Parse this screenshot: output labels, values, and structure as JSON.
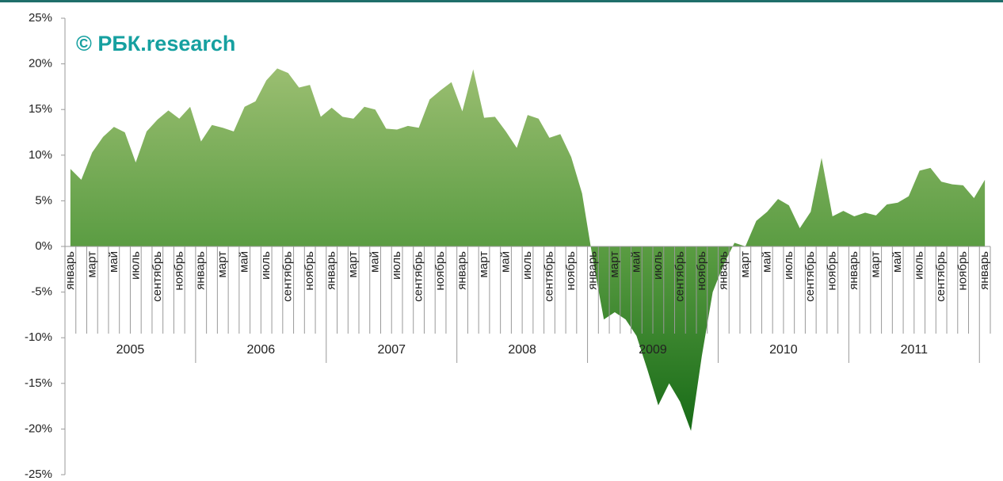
{
  "chart_data": {
    "type": "area",
    "annotation": "© РБК.research",
    "categories": [
      "январь",
      null,
      "март",
      null,
      "май",
      null,
      "июль",
      null,
      "сентябрь",
      null,
      "ноябрь",
      null,
      "январь",
      null,
      "март",
      null,
      "май",
      null,
      "июль",
      null,
      "сентябрь",
      null,
      "ноябрь",
      null,
      "январь",
      null,
      "март",
      null,
      "май",
      null,
      "июль",
      null,
      "сентябрь",
      null,
      "ноябрь",
      null,
      "январь",
      null,
      "март",
      null,
      "май",
      null,
      "июль",
      null,
      "сентябрь",
      null,
      "ноябрь",
      null,
      "январь",
      null,
      "март",
      null,
      "май",
      null,
      "июль",
      null,
      "сентябрь",
      null,
      "ноябрь",
      null,
      "январь",
      null,
      "март",
      null,
      "май",
      null,
      "июль",
      null,
      "сентябрь",
      null,
      "ноябрь",
      null,
      "январь",
      null,
      "март",
      null,
      "май",
      null,
      "июль",
      null,
      "сентябрь",
      null,
      "ноябрь",
      null,
      "январь"
    ],
    "years": [
      "2005",
      "2006",
      "2007",
      "2008",
      "2009",
      "2010",
      "2011"
    ],
    "values": [
      8.5,
      7.3,
      10.3,
      12.0,
      13.1,
      12.5,
      9.2,
      12.6,
      13.9,
      14.9,
      14.0,
      15.3,
      11.5,
      13.3,
      13.0,
      12.6,
      15.3,
      15.9,
      18.2,
      19.5,
      19.0,
      17.4,
      17.7,
      14.2,
      15.2,
      14.2,
      14.0,
      15.3,
      15.0,
      12.9,
      12.8,
      13.2,
      13.0,
      16.1,
      17.1,
      18.0,
      14.8,
      19.4,
      14.1,
      14.2,
      12.6,
      10.8,
      14.4,
      14.0,
      11.9,
      12.3,
      9.8,
      5.8,
      -1.5,
      -8.0,
      -7.2,
      -8.0,
      -9.8,
      -13.5,
      -17.4,
      -15.0,
      -17.0,
      -20.2,
      -12.0,
      -5.0,
      -2.0,
      0.4,
      0.0,
      2.8,
      3.8,
      5.2,
      4.5,
      2.0,
      3.8,
      9.7,
      3.3,
      3.9,
      3.3,
      3.7,
      3.4,
      4.6,
      4.8,
      5.5,
      8.3,
      8.6,
      7.1,
      6.8,
      6.7,
      5.3,
      7.3
    ],
    "color": "#4e9a3a",
    "ylim": [
      -25,
      25
    ],
    "yticks": [
      {
        "value": -25,
        "label": "-25%"
      },
      {
        "value": -20,
        "label": "-20%"
      },
      {
        "value": -15,
        "label": "-15%"
      },
      {
        "value": -10,
        "label": "-10%"
      },
      {
        "value": -5,
        "label": "-5%"
      },
      {
        "value": 0,
        "label": "0%"
      },
      {
        "value": 5,
        "label": "5%"
      },
      {
        "value": 10,
        "label": "10%"
      },
      {
        "value": 15,
        "label": "15%"
      },
      {
        "value": 20,
        "label": "20%"
      },
      {
        "value": 25,
        "label": "25%"
      }
    ]
  }
}
